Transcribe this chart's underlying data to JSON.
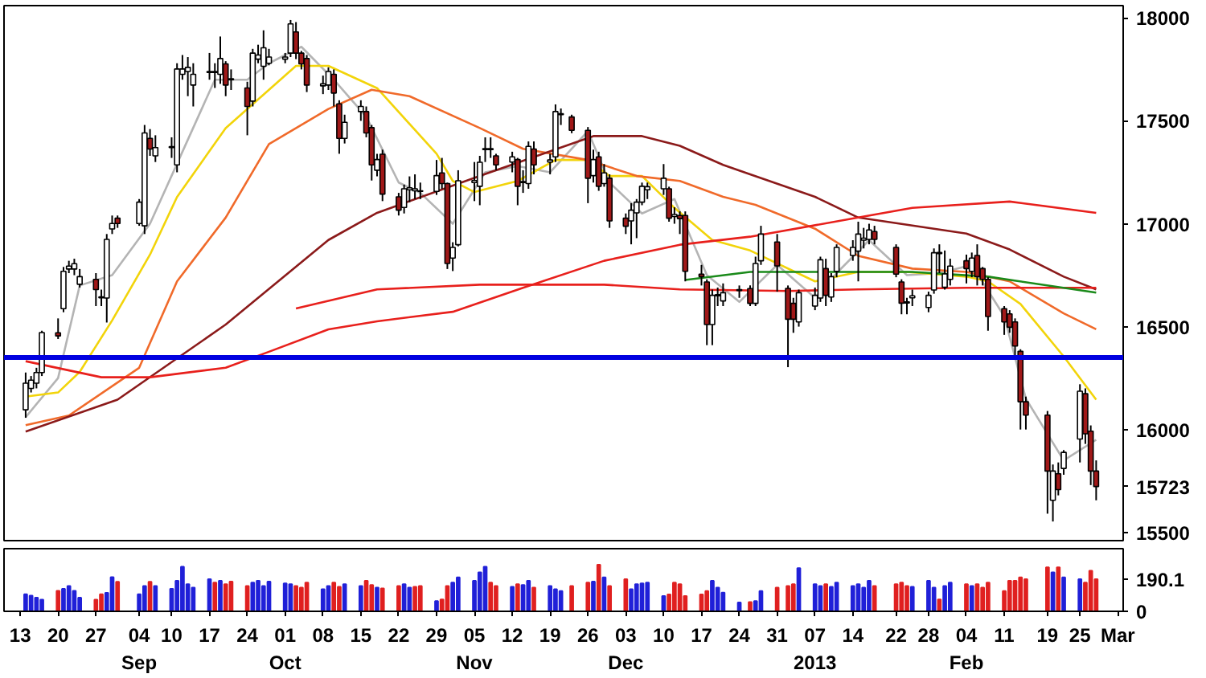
{
  "chart_data": [
    {
      "type": "candlestick",
      "x": [
        "2012-08-14",
        "2012-08-15",
        "2012-08-16",
        "2012-08-17",
        "2012-08-20",
        "2012-08-21",
        "2012-08-22",
        "2012-08-23",
        "2012-08-24",
        "2012-08-27",
        "2012-08-28",
        "2012-08-29",
        "2012-08-30",
        "2012-08-31",
        "2012-09-04",
        "2012-09-05",
        "2012-09-06",
        "2012-09-07",
        "2012-09-10",
        "2012-09-11",
        "2012-09-12",
        "2012-09-13",
        "2012-09-14",
        "2012-09-17",
        "2012-09-18",
        "2012-09-19",
        "2012-09-20",
        "2012-09-21",
        "2012-09-24",
        "2012-09-25",
        "2012-09-26",
        "2012-09-27",
        "2012-09-28",
        "2012-10-01",
        "2012-10-02",
        "2012-10-03",
        "2012-10-04",
        "2012-10-05",
        "2012-10-08",
        "2012-10-09",
        "2012-10-10",
        "2012-10-11",
        "2012-10-12",
        "2012-10-15",
        "2012-10-16",
        "2012-10-17",
        "2012-10-18",
        "2012-10-19",
        "2012-10-22",
        "2012-10-23",
        "2012-10-24",
        "2012-10-25",
        "2012-10-26",
        "2012-10-29",
        "2012-10-30",
        "2012-10-31",
        "2012-11-01",
        "2012-11-02",
        "2012-11-05",
        "2012-11-06",
        "2012-11-07",
        "2012-11-08",
        "2012-11-09",
        "2012-11-12",
        "2012-11-13",
        "2012-11-14",
        "2012-11-15",
        "2012-11-16",
        "2012-11-19",
        "2012-11-20",
        "2012-11-21",
        "2012-11-23",
        "2012-11-26",
        "2012-11-27",
        "2012-11-28",
        "2012-11-29",
        "2012-11-30",
        "2012-12-03",
        "2012-12-04",
        "2012-12-05",
        "2012-12-06",
        "2012-12-07",
        "2012-12-10",
        "2012-12-11",
        "2012-12-12",
        "2012-12-13",
        "2012-12-14",
        "2012-12-17",
        "2012-12-18",
        "2012-12-19",
        "2012-12-20",
        "2012-12-21",
        "2012-12-24",
        "2012-12-26",
        "2012-12-27",
        "2012-12-28",
        "2012-12-31",
        "2013-01-02",
        "2013-01-03",
        "2013-01-04",
        "2013-01-07",
        "2013-01-08",
        "2013-01-09",
        "2013-01-10",
        "2013-01-11",
        "2013-01-14",
        "2013-01-15",
        "2013-01-16",
        "2013-01-17",
        "2013-01-18",
        "2013-01-22",
        "2013-01-23",
        "2013-01-24",
        "2013-01-25",
        "2013-01-28",
        "2013-01-29",
        "2013-01-30",
        "2013-01-31",
        "2013-02-01",
        "2013-02-04",
        "2013-02-05",
        "2013-02-06",
        "2013-02-07",
        "2013-02-08",
        "2013-02-11",
        "2013-02-12",
        "2013-02-13",
        "2013-02-14",
        "2013-02-15",
        "2013-02-19",
        "2013-02-20",
        "2013-02-21",
        "2013-02-22",
        "2013-02-25",
        "2013-02-26",
        "2013-02-27",
        "2013-02-28"
      ],
      "ohlc": [
        [
          16096,
          16277,
          16057,
          16225
        ],
        [
          16200,
          16260,
          16180,
          16240
        ],
        [
          16225,
          16300,
          16200,
          16277
        ],
        [
          16277,
          16480,
          16260,
          16471
        ],
        [
          16470,
          16540,
          16440,
          16455
        ],
        [
          16587,
          16790,
          16570,
          16769
        ],
        [
          16780,
          16820,
          16760,
          16794
        ],
        [
          16780,
          16830,
          16750,
          16806
        ],
        [
          16706,
          16780,
          16690,
          16743
        ],
        [
          16730,
          16760,
          16600,
          16680
        ],
        [
          16640,
          16680,
          16600,
          16645
        ],
        [
          16639,
          16950,
          16520,
          16924
        ],
        [
          16975,
          17040,
          16950,
          17001
        ],
        [
          17027,
          17040,
          16980,
          17001
        ],
        [
          17001,
          17120,
          16990,
          17105
        ],
        [
          16990,
          17480,
          16950,
          17441
        ],
        [
          17415,
          17460,
          17330,
          17363
        ],
        [
          17330,
          17430,
          17300,
          17370
        ],
        [
          17370,
          17420,
          17320,
          17375
        ],
        [
          17286,
          17780,
          17250,
          17752
        ],
        [
          17726,
          17820,
          17700,
          17752
        ],
        [
          17740,
          17810,
          17620,
          17760
        ],
        [
          17674,
          17780,
          17570,
          17726
        ],
        [
          17735,
          17830,
          17700,
          17740
        ],
        [
          17740,
          17780,
          17660,
          17735
        ],
        [
          17726,
          17910,
          17680,
          17803
        ],
        [
          17777,
          17790,
          17620,
          17674
        ],
        [
          17700,
          17750,
          17650,
          17705
        ],
        [
          17660,
          17690,
          17430,
          17570
        ],
        [
          17596,
          17850,
          17570,
          17829
        ],
        [
          17800,
          17870,
          17780,
          17820
        ],
        [
          17765,
          17940,
          17700,
          17855
        ],
        [
          17780,
          17850,
          17770,
          17810
        ],
        [
          17800,
          17830,
          17780,
          17810
        ],
        [
          17829,
          17990,
          17810,
          17971
        ],
        [
          17932,
          17980,
          17800,
          17829
        ],
        [
          17829,
          17840,
          17750,
          17777
        ],
        [
          17803,
          17820,
          17640,
          17674
        ],
        [
          17670,
          17720,
          17630,
          17680
        ],
        [
          17674,
          17760,
          17650,
          17740
        ],
        [
          17726,
          17750,
          17570,
          17635
        ],
        [
          17583,
          17600,
          17340,
          17415
        ],
        [
          17415,
          17530,
          17390,
          17493
        ],
        [
          17545,
          17600,
          17500,
          17570
        ],
        [
          17545,
          17570,
          17420,
          17441
        ],
        [
          17467,
          17480,
          17210,
          17286
        ],
        [
          17260,
          17340,
          17230,
          17312
        ],
        [
          17338,
          17360,
          17110,
          17144
        ],
        [
          17131,
          17150,
          17040,
          17066
        ],
        [
          17079,
          17190,
          17050,
          17170
        ],
        [
          17165,
          17230,
          17105,
          17175
        ],
        [
          17160,
          17240,
          17120,
          17170
        ],
        [
          17157,
          17200,
          17120,
          17160
        ],
        [
          17157,
          17310,
          17140,
          17234
        ],
        [
          17247,
          17320,
          17170,
          17195
        ],
        [
          17195,
          17200,
          16780,
          16807
        ],
        [
          16833,
          16910,
          16770,
          16885
        ],
        [
          16898,
          17260,
          16890,
          17209
        ],
        [
          17200,
          17300,
          17110,
          17210
        ],
        [
          17182,
          17330,
          17090,
          17299
        ],
        [
          17360,
          17420,
          17300,
          17365
        ],
        [
          17365,
          17420,
          17320,
          17360
        ],
        [
          17330,
          17340,
          17260,
          17286
        ],
        [
          17300,
          17350,
          17250,
          17325
        ],
        [
          17312,
          17320,
          17090,
          17182
        ],
        [
          17200,
          17260,
          17150,
          17205
        ],
        [
          17195,
          17400,
          17170,
          17376
        ],
        [
          17363,
          17400,
          17240,
          17286
        ],
        [
          17300,
          17340,
          17240,
          17310
        ],
        [
          17325,
          17580,
          17300,
          17545
        ],
        [
          17530,
          17560,
          17480,
          17535
        ],
        [
          17519,
          17530,
          17440,
          17454
        ],
        [
          17454,
          17470,
          17100,
          17221
        ],
        [
          17234,
          17360,
          17200,
          17312
        ],
        [
          17325,
          17350,
          17160,
          17182
        ],
        [
          17195,
          17290,
          17180,
          17247
        ],
        [
          17221,
          17240,
          16980,
          17014
        ],
        [
          17027,
          17050,
          16950,
          16988
        ],
        [
          17014,
          17100,
          16900,
          17066
        ],
        [
          17053,
          17120,
          16930,
          17105
        ],
        [
          17105,
          17200,
          17090,
          17182
        ],
        [
          17165,
          17200,
          17120,
          17180
        ],
        [
          17170,
          17290,
          17140,
          17221
        ],
        [
          17170,
          17180,
          17010,
          17027
        ],
        [
          17035,
          17080,
          17000,
          17045
        ],
        [
          17040,
          17060,
          16950,
          17025
        ],
        [
          17040,
          17060,
          16720,
          16769
        ],
        [
          16755,
          16800,
          16700,
          16743
        ],
        [
          16717,
          16730,
          16410,
          16510
        ],
        [
          16510,
          16680,
          16410,
          16652
        ],
        [
          16650,
          16690,
          16600,
          16655
        ],
        [
          16625,
          16710,
          16600,
          16665
        ],
        [
          16675,
          16700,
          16640,
          16680
        ],
        [
          16685,
          16700,
          16600,
          16613
        ],
        [
          16613,
          16840,
          16600,
          16807
        ],
        [
          16820,
          16990,
          16800,
          16950
        ],
        [
          16911,
          16950,
          16670,
          16795
        ],
        [
          16686,
          16700,
          16303,
          16536
        ],
        [
          16613,
          16640,
          16470,
          16536
        ],
        [
          16523,
          16680,
          16500,
          16665
        ],
        [
          16600,
          16690,
          16580,
          16652
        ],
        [
          16639,
          16840,
          16620,
          16825
        ],
        [
          16782,
          16830,
          16600,
          16652
        ],
        [
          16644,
          16760,
          16620,
          16743
        ],
        [
          16769,
          16900,
          16740,
          16885
        ],
        [
          16846,
          16920,
          16820,
          16885
        ],
        [
          16867,
          17010,
          16720,
          16950
        ],
        [
          16920,
          16980,
          16880,
          16930
        ],
        [
          16924,
          17000,
          16900,
          16970
        ],
        [
          16962,
          16990,
          16900,
          16924
        ],
        [
          16885,
          16900,
          16740,
          16755
        ],
        [
          16717,
          16730,
          16560,
          16614
        ],
        [
          16620,
          16640,
          16560,
          16615
        ],
        [
          16640,
          16680,
          16600,
          16650
        ],
        [
          16593,
          16670,
          16570,
          16652
        ],
        [
          16678,
          16880,
          16660,
          16859
        ],
        [
          16860,
          16900,
          16760,
          16855
        ],
        [
          16691,
          16870,
          16680,
          16756
        ],
        [
          16730,
          16830,
          16700,
          16794
        ],
        [
          16820,
          16850,
          16710,
          16782
        ],
        [
          16769,
          16860,
          16740,
          16833
        ],
        [
          16846,
          16900,
          16700,
          16743
        ],
        [
          16782,
          16790,
          16700,
          16730
        ],
        [
          16730,
          16740,
          16480,
          16549
        ],
        [
          16587,
          16600,
          16460,
          16523
        ],
        [
          16562,
          16580,
          16470,
          16497
        ],
        [
          16523,
          16540,
          16340,
          16406
        ],
        [
          16380,
          16390,
          16000,
          16135
        ],
        [
          16135,
          16160,
          16000,
          16070
        ],
        [
          16070,
          16090,
          15591,
          15798
        ],
        [
          15656,
          15830,
          15553,
          15798
        ],
        [
          15785,
          15840,
          15680,
          15708
        ],
        [
          15811,
          15900,
          15780,
          15889
        ],
        [
          15954,
          16220,
          15840,
          16186
        ],
        [
          16174,
          16200,
          15930,
          15979
        ],
        [
          15992,
          16020,
          15730,
          15798
        ],
        [
          15798,
          15850,
          15656,
          15723
        ]
      ],
      "series": [
        {
          "type": "line",
          "color": "#b4b4b4",
          "x": [
            "2012-08-14",
            "2012-08-20",
            "2012-08-24",
            "2012-08-30",
            "2012-09-06",
            "2012-09-12",
            "2012-09-18",
            "2012-09-24",
            "2012-09-28",
            "2012-10-04",
            "2012-10-10",
            "2012-10-16",
            "2012-10-22",
            "2012-10-26",
            "2012-11-01",
            "2012-11-07",
            "2012-11-13",
            "2012-11-19",
            "2012-11-26",
            "2012-11-30",
            "2012-12-06",
            "2012-12-12",
            "2012-12-18",
            "2012-12-24",
            "2012-12-31",
            "2013-01-07",
            "2013-01-11",
            "2013-01-17",
            "2013-01-24",
            "2013-01-30",
            "2013-02-05",
            "2013-02-11",
            "2013-02-15",
            "2013-02-22",
            "2013-02-28"
          ],
          "values": [
            16060,
            16250,
            16700,
            16750,
            17000,
            17350,
            17700,
            17700,
            17780,
            17860,
            17700,
            17520,
            17200,
            17150,
            17000,
            17250,
            17280,
            17250,
            17450,
            17200,
            17050,
            17120,
            16750,
            16620,
            16800,
            16640,
            16760,
            16920,
            16750,
            16760,
            16800,
            16550,
            16150,
            15850,
            15950
          ]
        },
        {
          "type": "line",
          "color": "#f2d40a",
          "x": [
            "2012-08-14",
            "2012-08-20",
            "2012-08-24",
            "2012-08-30",
            "2012-09-06",
            "2012-09-11",
            "2012-09-20",
            "2012-10-03",
            "2012-10-09",
            "2012-10-18",
            "2012-10-29",
            "2012-11-01",
            "2012-11-05",
            "2012-11-13",
            "2012-11-20",
            "2012-11-26",
            "2012-11-30",
            "2012-12-06",
            "2012-12-12",
            "2012-12-19",
            "2012-12-26",
            "2013-01-07",
            "2013-01-15",
            "2013-01-24",
            "2013-02-04",
            "2013-02-08",
            "2013-02-14",
            "2013-02-22",
            "2013-02-28"
          ],
          "values": [
            16160,
            16180,
            16280,
            16530,
            16850,
            17130,
            17465,
            17767,
            17767,
            17659,
            17340,
            17208,
            17154,
            17208,
            17310,
            17310,
            17232,
            17232,
            17077,
            16921,
            16870,
            16720,
            16766,
            16766,
            16743,
            16720,
            16610,
            16355,
            16145
          ]
        },
        {
          "type": "line",
          "color": "#f06a2a",
          "x": [
            "2012-08-14",
            "2012-08-22",
            "2012-09-04",
            "2012-09-11",
            "2012-09-20",
            "2012-09-28",
            "2012-10-09",
            "2012-10-17",
            "2012-10-24",
            "2012-11-06",
            "2012-11-14",
            "2012-11-26",
            "2012-12-05",
            "2012-12-13",
            "2012-12-21",
            "2012-12-27",
            "2013-01-07",
            "2013-01-15",
            "2013-01-25",
            "2013-02-04",
            "2013-02-12",
            "2013-02-22",
            "2013-02-28"
          ],
          "values": [
            16021,
            16068,
            16300,
            16720,
            17030,
            17387,
            17558,
            17651,
            17620,
            17465,
            17364,
            17310,
            17232,
            17208,
            17131,
            17092,
            16976,
            16844,
            16782,
            16766,
            16720,
            16564,
            16487
          ]
        },
        {
          "type": "line",
          "color": "#8b1a1a",
          "x": [
            "2012-08-14",
            "2012-08-31",
            "2012-09-20",
            "2012-10-09",
            "2012-10-18",
            "2012-11-06",
            "2012-11-27",
            "2012-12-06",
            "2012-12-13",
            "2012-12-21",
            "2012-12-26",
            "2013-01-07",
            "2013-01-15",
            "2013-01-25",
            "2013-02-04",
            "2013-02-12",
            "2013-02-22",
            "2013-02-28"
          ],
          "values": [
            15990,
            16145,
            16510,
            16921,
            17053,
            17232,
            17426,
            17426,
            17379,
            17286,
            17240,
            17131,
            17030,
            16991,
            16952,
            16875,
            16743,
            16681
          ]
        },
        {
          "type": "line",
          "color": "#e8201c",
          "x": [
            "2012-08-14",
            "2012-08-28",
            "2012-09-06",
            "2012-09-20",
            "2012-09-28",
            "2012-10-09",
            "2012-10-18",
            "2012-11-01",
            "2012-11-14",
            "2012-11-29",
            "2012-12-13",
            "2012-12-26",
            "2013-01-15",
            "2013-01-25",
            "2013-02-12",
            "2013-02-28"
          ],
          "values": [
            16332,
            16254,
            16254,
            16300,
            16378,
            16487,
            16526,
            16572,
            16689,
            16820,
            16898,
            16937,
            17030,
            17077,
            17108,
            17053
          ]
        },
        {
          "type": "line",
          "color": "#e8201c",
          "x": [
            "2012-10-03",
            "2012-10-18",
            "2012-11-06",
            "2012-11-29",
            "2012-12-13",
            "2013-01-02",
            "2013-01-15",
            "2013-02-04",
            "2013-02-28"
          ],
          "values": [
            16588,
            16681,
            16704,
            16704,
            16681,
            16673,
            16681,
            16689,
            16689
          ]
        },
        {
          "type": "line",
          "color": "#1a8a1a",
          "x": [
            "2012-12-14",
            "2012-12-26",
            "2013-01-25",
            "2013-02-08",
            "2013-02-28"
          ],
          "values": [
            16727,
            16766,
            16766,
            16743,
            16665
          ]
        }
      ],
      "ref_lines": [
        {
          "axis": "y",
          "value": 16350,
          "color": "#0000e0"
        }
      ],
      "xlim": [
        "2012-08-10",
        "2013-03-05"
      ],
      "ylim": [
        15460,
        18060
      ],
      "yticks": [
        15500,
        {
          "value": 15723,
          "label": "15723"
        },
        16000,
        16500,
        17000,
        17500,
        18000
      ],
      "tick_labels": "y"
    },
    {
      "type": "bar",
      "x": [
        "2012-08-14",
        "2012-08-15",
        "2012-08-16",
        "2012-08-17",
        "2012-08-20",
        "2012-08-21",
        "2012-08-22",
        "2012-08-23",
        "2012-08-24",
        "2012-08-27",
        "2012-08-28",
        "2012-08-29",
        "2012-08-30",
        "2012-08-31",
        "2012-09-04",
        "2012-09-05",
        "2012-09-06",
        "2012-09-07",
        "2012-09-10",
        "2012-09-11",
        "2012-09-12",
        "2012-09-13",
        "2012-09-14",
        "2012-09-17",
        "2012-09-18",
        "2012-09-19",
        "2012-09-20",
        "2012-09-21",
        "2012-09-24",
        "2012-09-25",
        "2012-09-26",
        "2012-09-27",
        "2012-09-28",
        "2012-10-01",
        "2012-10-02",
        "2012-10-03",
        "2012-10-04",
        "2012-10-05",
        "2012-10-08",
        "2012-10-09",
        "2012-10-10",
        "2012-10-11",
        "2012-10-12",
        "2012-10-15",
        "2012-10-16",
        "2012-10-17",
        "2012-10-18",
        "2012-10-19",
        "2012-10-22",
        "2012-10-23",
        "2012-10-24",
        "2012-10-25",
        "2012-10-26",
        "2012-10-29",
        "2012-10-30",
        "2012-10-31",
        "2012-11-01",
        "2012-11-02",
        "2012-11-05",
        "2012-11-06",
        "2012-11-07",
        "2012-11-08",
        "2012-11-09",
        "2012-11-12",
        "2012-11-13",
        "2012-11-14",
        "2012-11-15",
        "2012-11-16",
        "2012-11-19",
        "2012-11-20",
        "2012-11-21",
        "2012-11-23",
        "2012-11-26",
        "2012-11-27",
        "2012-11-28",
        "2012-11-29",
        "2012-11-30",
        "2012-12-03",
        "2012-12-04",
        "2012-12-05",
        "2012-12-06",
        "2012-12-07",
        "2012-12-10",
        "2012-12-11",
        "2012-12-12",
        "2012-12-13",
        "2012-12-14",
        "2012-12-17",
        "2012-12-18",
        "2012-12-19",
        "2012-12-20",
        "2012-12-21",
        "2012-12-24",
        "2012-12-26",
        "2012-12-27",
        "2012-12-28",
        "2012-12-31",
        "2013-01-02",
        "2013-01-03",
        "2013-01-04",
        "2013-01-07",
        "2013-01-08",
        "2013-01-09",
        "2013-01-10",
        "2013-01-11",
        "2013-01-14",
        "2013-01-15",
        "2013-01-16",
        "2013-01-17",
        "2013-01-18",
        "2013-01-22",
        "2013-01-23",
        "2013-01-24",
        "2013-01-25",
        "2013-01-28",
        "2013-01-29",
        "2013-01-30",
        "2013-01-31",
        "2013-02-01",
        "2013-02-04",
        "2013-02-05",
        "2013-02-06",
        "2013-02-07",
        "2013-02-08",
        "2013-02-11",
        "2013-02-12",
        "2013-02-13",
        "2013-02-14",
        "2013-02-15",
        "2013-02-19",
        "2013-02-20",
        "2013-02-21",
        "2013-02-22",
        "2013-02-25",
        "2013-02-26",
        "2013-02-27",
        "2013-02-28"
      ],
      "values": [
        101,
        93,
        81,
        69,
        121,
        133,
        149,
        121,
        81,
        69,
        101,
        109,
        202,
        174,
        101,
        150,
        174,
        149,
        133,
        180,
        263,
        160,
        140,
        190,
        170,
        180,
        160,
        175,
        150,
        170,
        180,
        150,
        175,
        165,
        160,
        150,
        140,
        170,
        130,
        150,
        170,
        145,
        160,
        150,
        180,
        155,
        140,
        135,
        150,
        160,
        140,
        145,
        150,
        60,
        70,
        150,
        170,
        200,
        180,
        230,
        263,
        170,
        150,
        145,
        160,
        155,
        180,
        140,
        150,
        130,
        120,
        150,
        170,
        175,
        275,
        200,
        150,
        190,
        130,
        160,
        165,
        170,
        90,
        100,
        170,
        160,
        90,
        100,
        120,
        180,
        140,
        110,
        52,
        55,
        60,
        120,
        140,
        150,
        160,
        255,
        160,
        150,
        160,
        145,
        170,
        150,
        160,
        140,
        180,
        150,
        160,
        170,
        150,
        145,
        180,
        140,
        70,
        150,
        170,
        160,
        150,
        160,
        140,
        170,
        120,
        180,
        180,
        200,
        190,
        260,
        230,
        260,
        200,
        190,
        170,
        240,
        190.1
      ],
      "colors": [
        "#2020d8",
        "#2020d8",
        "#2020d8",
        "#2020d8",
        "#e02020",
        "#2020d8",
        "#2020d8",
        "#2020d8",
        "#2020d8",
        "#e02020",
        "#e02020",
        "#2020d8",
        "#2020d8",
        "#e02020",
        "#2020d8",
        "#2020d8",
        "#e02020",
        "#2020d8",
        "#2020d8",
        "#2020d8",
        "#2020d8",
        "#2020d8",
        "#2020d8",
        "#2020d8",
        "#e02020",
        "#2020d8",
        "#e02020",
        "#e02020",
        "#e02020",
        "#2020d8",
        "#2020d8",
        "#2020d8",
        "#2020d8",
        "#2020d8",
        "#2020d8",
        "#e02020",
        "#e02020",
        "#e02020",
        "#2020d8",
        "#2020d8",
        "#e02020",
        "#e02020",
        "#2020d8",
        "#2020d8",
        "#e02020",
        "#e02020",
        "#2020d8",
        "#e02020",
        "#e02020",
        "#2020d8",
        "#2020d8",
        "#e02020",
        "#e02020",
        "#2020d8",
        "#e02020",
        "#e02020",
        "#2020d8",
        "#2020d8",
        "#2020d8",
        "#2020d8",
        "#2020d8",
        "#e02020",
        "#e02020",
        "#2020d8",
        "#e02020",
        "#2020d8",
        "#2020d8",
        "#e02020",
        "#2020d8",
        "#2020d8",
        "#2020d8",
        "#e02020",
        "#e02020",
        "#2020d8",
        "#e02020",
        "#2020d8",
        "#e02020",
        "#e02020",
        "#2020d8",
        "#2020d8",
        "#2020d8",
        "#2020d8",
        "#2020d8",
        "#e02020",
        "#e02020",
        "#e02020",
        "#e02020",
        "#e02020",
        "#e02020",
        "#2020d8",
        "#2020d8",
        "#2020d8",
        "#2020d8",
        "#e02020",
        "#2020d8",
        "#2020d8",
        "#e02020",
        "#e02020",
        "#e02020",
        "#2020d8",
        "#2020d8",
        "#2020d8",
        "#e02020",
        "#2020d8",
        "#2020d8",
        "#2020d8",
        "#2020d8",
        "#2020d8",
        "#2020d8",
        "#e02020",
        "#e02020",
        "#e02020",
        "#e02020",
        "#2020d8",
        "#2020d8",
        "#2020d8",
        "#e02020",
        "#2020d8",
        "#2020d8",
        "#e02020",
        "#2020d8",
        "#e02020",
        "#e02020",
        "#e02020",
        "#e02020",
        "#e02020",
        "#e02020",
        "#e02020",
        "#e02020",
        "#e02020",
        "#2020d8",
        "#e02020",
        "#2020d8",
        "#2020d8",
        "#e02020",
        "#e02020",
        "#e02020"
      ],
      "xlim": [
        "2012-08-10",
        "2013-03-05"
      ],
      "xticks": [
        {
          "value": "2012-08-13",
          "label": "13"
        },
        {
          "value": "2012-08-20",
          "label": "20"
        },
        {
          "value": "2012-08-27",
          "label": "27"
        },
        {
          "value": "2012-09-04",
          "label": "04\nSep"
        },
        {
          "value": "2012-09-10",
          "label": "10"
        },
        {
          "value": "2012-09-17",
          "label": "17"
        },
        {
          "value": "2012-09-24",
          "label": "24"
        },
        {
          "value": "2012-10-01",
          "label": "01\nOct"
        },
        {
          "value": "2012-10-08",
          "label": "08"
        },
        {
          "value": "2012-10-15",
          "label": "15"
        },
        {
          "value": "2012-10-22",
          "label": "22"
        },
        {
          "value": "2012-10-29",
          "label": "29"
        },
        {
          "value": "2012-11-05",
          "label": "05\nNov"
        },
        {
          "value": "2012-11-12",
          "label": "12"
        },
        {
          "value": "2012-11-19",
          "label": "19"
        },
        {
          "value": "2012-11-26",
          "label": "26"
        },
        {
          "value": "2012-12-03",
          "label": "03\nDec"
        },
        {
          "value": "2012-12-10",
          "label": "10"
        },
        {
          "value": "2012-12-17",
          "label": "17"
        },
        {
          "value": "2012-12-24",
          "label": "24"
        },
        {
          "value": "2012-12-31",
          "label": "31"
        },
        {
          "value": "2013-01-07",
          "label": "07\n2013"
        },
        {
          "value": "2013-01-14",
          "label": "14"
        },
        {
          "value": "2013-01-22",
          "label": "22"
        },
        {
          "value": "2013-01-28",
          "label": "28"
        },
        {
          "value": "2013-02-04",
          "label": "04\nFeb"
        },
        {
          "value": "2013-02-11",
          "label": "11"
        },
        {
          "value": "2013-02-19",
          "label": "19"
        },
        {
          "value": "2013-02-25",
          "label": "25"
        },
        {
          "value": "2013-03-04",
          "label": "Mar"
        }
      ],
      "ylim": [
        0,
        370
      ],
      "yticks": [
        0,
        {
          "value": 190.1,
          "label": "190.1"
        }
      ]
    }
  ]
}
